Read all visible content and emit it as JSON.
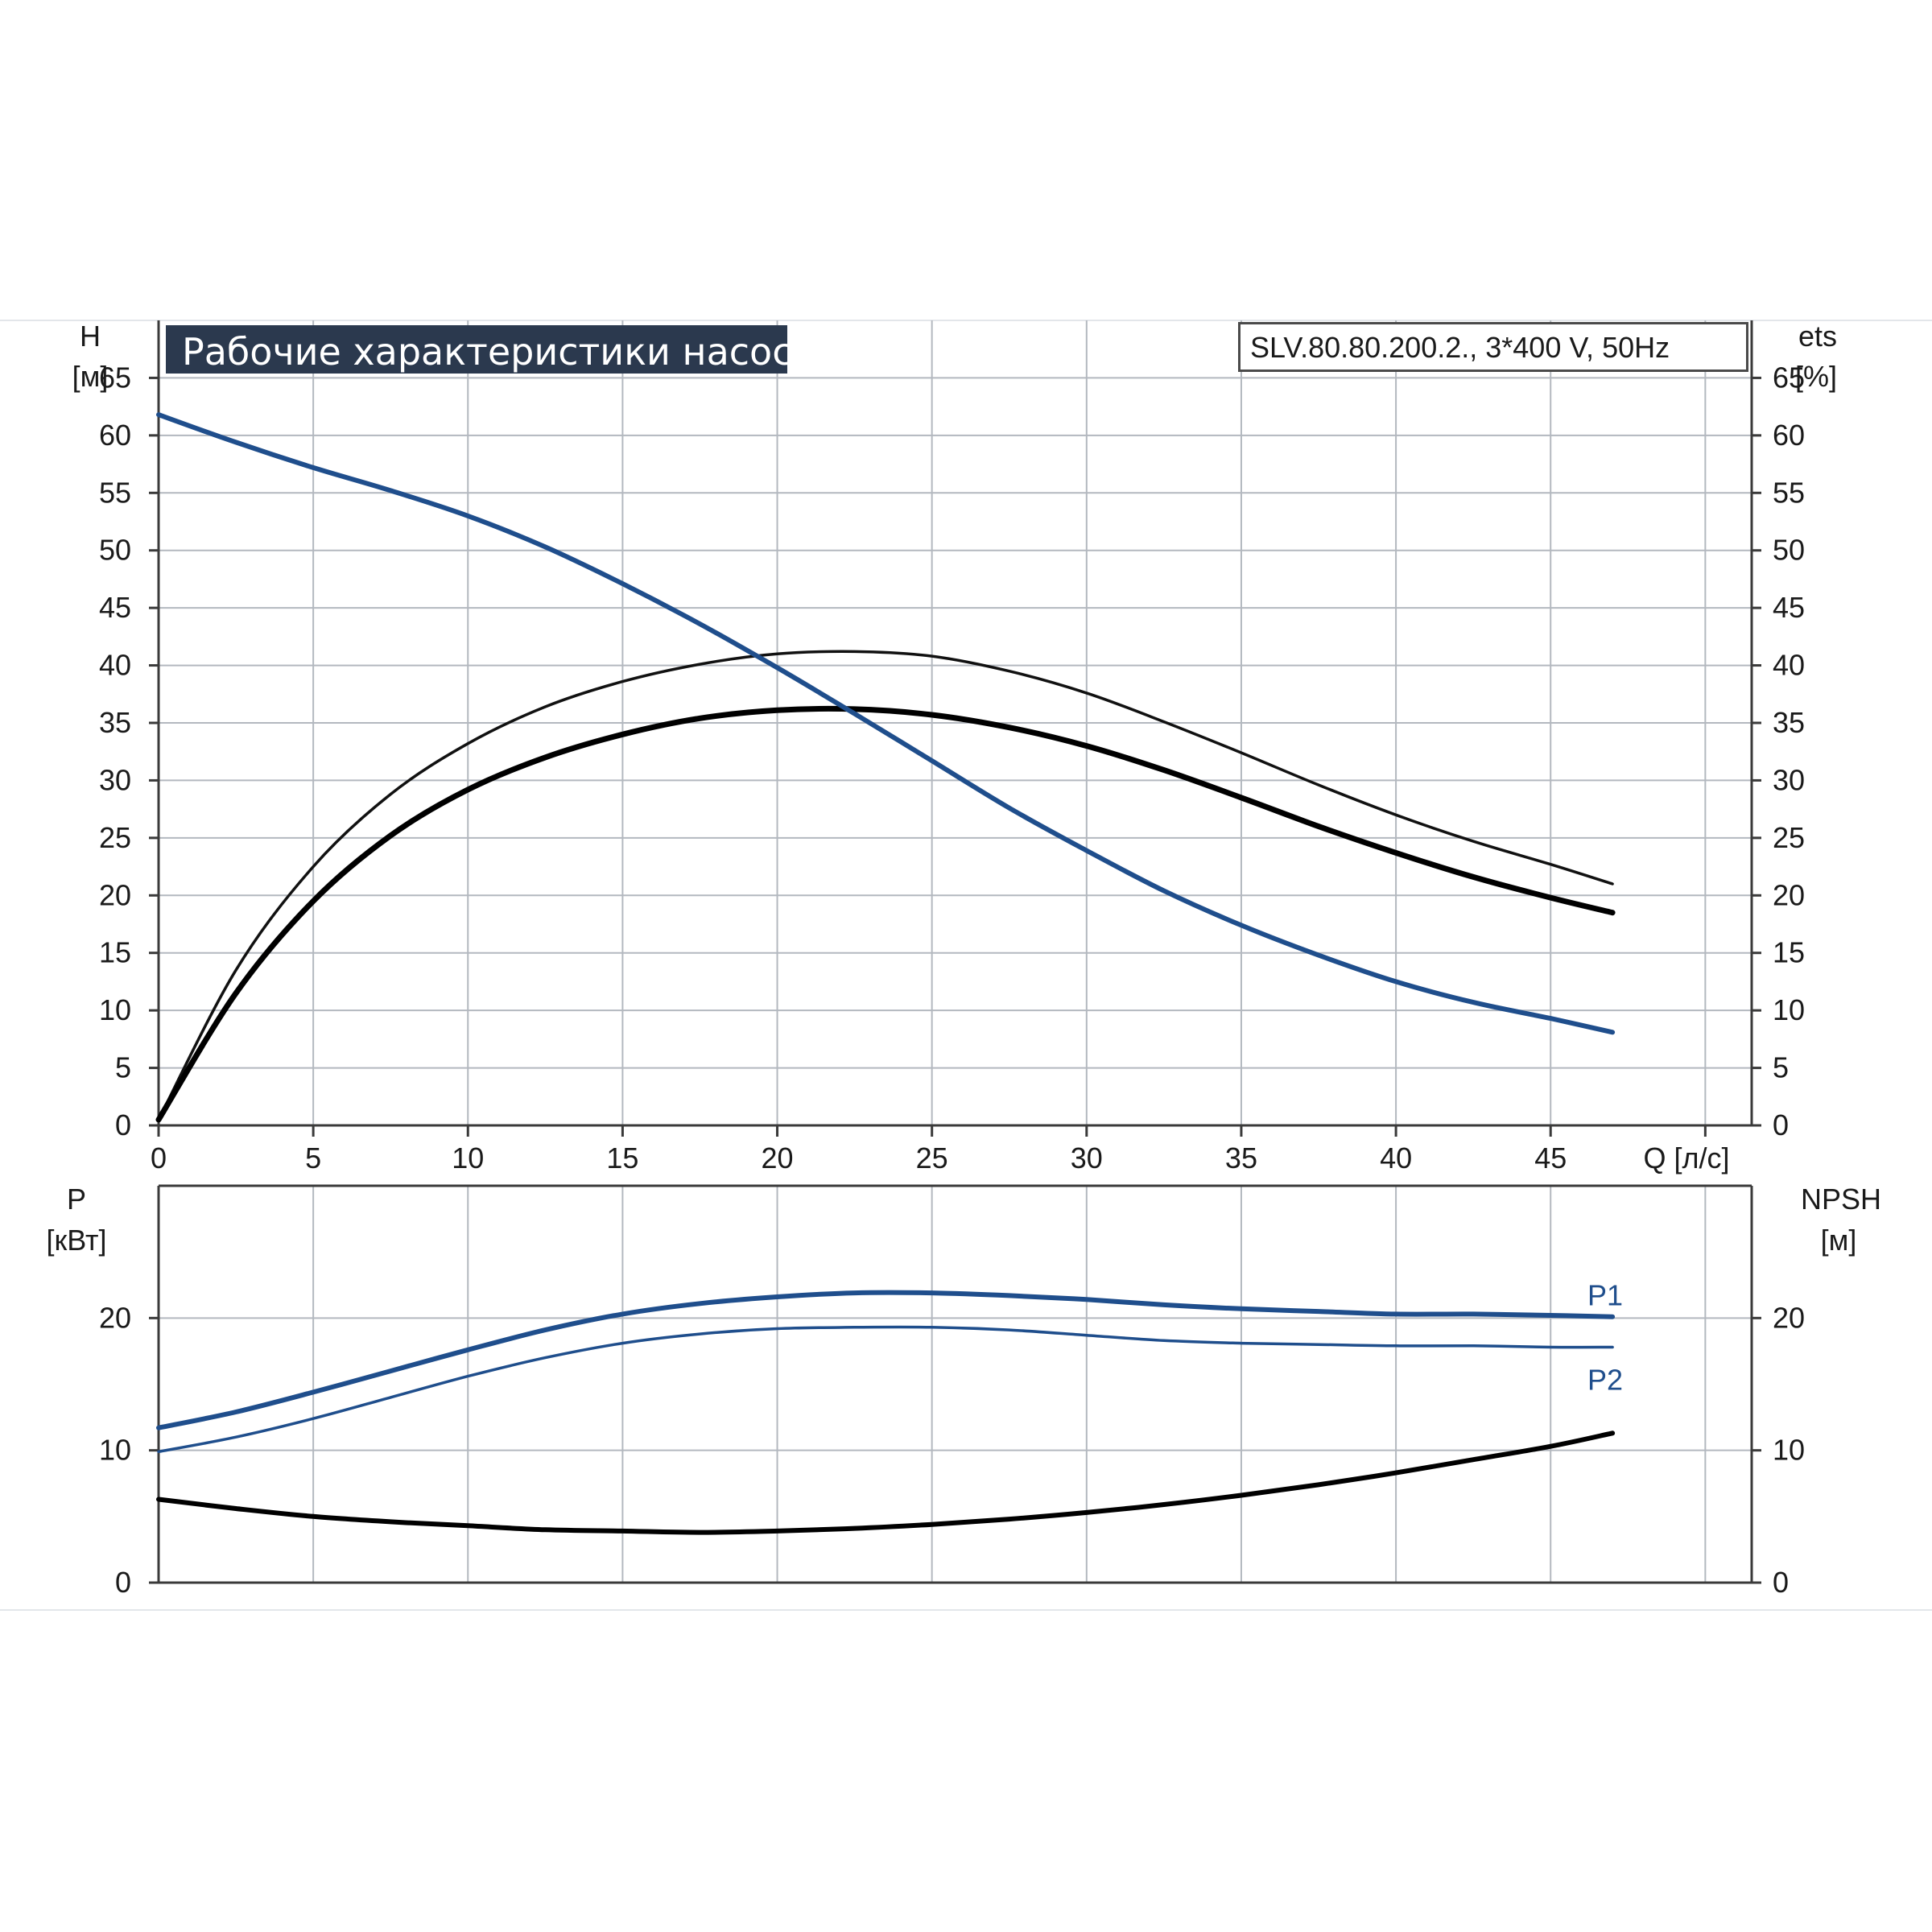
{
  "chart_data": [
    {
      "type": "line",
      "title": "Рабочие характеристики насоса",
      "model": "SLV.80.80.200.2., 3*400 V, 50Hz",
      "xlabel": "Q [л/с]",
      "x_ticks": [
        "0",
        "5",
        "10",
        "15",
        "20",
        "25",
        "30",
        "35",
        "40",
        "45"
      ],
      "xlim": [
        0,
        51.5
      ],
      "ylabel_left": [
        "H",
        "[м]"
      ],
      "ylabel_right": [
        "ets",
        "[%]"
      ],
      "y_ticks": [
        "0",
        "5",
        "10",
        "15",
        "20",
        "25",
        "30",
        "35",
        "40",
        "45",
        "50",
        "55",
        "60",
        "65"
      ],
      "ylim": [
        0,
        70
      ],
      "grid": true,
      "series": [
        {
          "color": "#1f4e8c",
          "x": [
            0,
            2.5,
            5,
            7.5,
            10,
            12.5,
            15,
            17.5,
            20,
            22.5,
            25,
            27.5,
            30,
            32.5,
            35,
            37.5,
            40,
            42.5,
            45,
            47
          ],
          "y": [
            61.8,
            59.4,
            57.2,
            55.2,
            53.0,
            50.3,
            47.1,
            43.6,
            39.8,
            35.8,
            31.7,
            27.6,
            23.9,
            20.4,
            17.4,
            14.8,
            12.5,
            10.7,
            9.3,
            8.1
          ]
        },
        {
          "color": "#111111",
          "x": [
            0,
            2.5,
            5,
            7.5,
            10,
            12.5,
            15,
            17.5,
            20,
            22.5,
            25,
            27.5,
            30,
            32.5,
            35,
            37.5,
            40,
            42.5,
            45,
            47
          ],
          "y": [
            0.5,
            13.5,
            22.5,
            28.8,
            33.2,
            36.4,
            38.6,
            40.1,
            41.0,
            41.2,
            40.8,
            39.5,
            37.6,
            35.1,
            32.4,
            29.6,
            27.0,
            24.7,
            22.7,
            21.0
          ]
        },
        {
          "color": "#000000",
          "x": [
            0,
            2.5,
            5,
            7.5,
            10,
            12.5,
            15,
            17.5,
            20,
            22.5,
            25,
            27.5,
            30,
            32.5,
            35,
            37.5,
            40,
            42.5,
            45,
            47
          ],
          "y": [
            0.5,
            11.5,
            19.5,
            25.2,
            29.2,
            32.0,
            34.0,
            35.4,
            36.1,
            36.2,
            35.7,
            34.6,
            33.0,
            30.9,
            28.5,
            26.0,
            23.7,
            21.6,
            19.8,
            18.5
          ]
        }
      ]
    },
    {
      "type": "line",
      "xlim": [
        0,
        51.5
      ],
      "ylabel_left": [
        "P",
        "[кВт]"
      ],
      "ylabel_right": [
        "NPSH",
        "[м]"
      ],
      "y_ticks": [
        "0",
        "10",
        "20"
      ],
      "ylim": [
        0,
        30
      ],
      "grid": true,
      "series": [
        {
          "name": "P1",
          "color": "#1f4e8c",
          "x": [
            0,
            2.5,
            5,
            7.5,
            10,
            12.5,
            15,
            17.5,
            20,
            22.5,
            25,
            27.5,
            30,
            32.5,
            35,
            37.5,
            40,
            42.5,
            45,
            47
          ],
          "y": [
            11.7,
            12.9,
            14.4,
            16.0,
            17.6,
            19.1,
            20.3,
            21.1,
            21.6,
            21.9,
            21.9,
            21.7,
            21.4,
            21.0,
            20.7,
            20.5,
            20.3,
            20.3,
            20.2,
            20.1
          ]
        },
        {
          "name": "P2",
          "color": "#1f4e8c",
          "x": [
            0,
            2.5,
            5,
            7.5,
            10,
            12.5,
            15,
            17.5,
            20,
            22.5,
            25,
            27.5,
            30,
            32.5,
            35,
            37.5,
            40,
            42.5,
            45,
            47
          ],
          "y": [
            9.9,
            11.0,
            12.4,
            14.0,
            15.6,
            17.0,
            18.1,
            18.8,
            19.2,
            19.3,
            19.3,
            19.1,
            18.7,
            18.3,
            18.1,
            18.0,
            17.9,
            17.9,
            17.8,
            17.8
          ]
        },
        {
          "color": "#000000",
          "x": [
            0,
            2.5,
            5,
            7.5,
            10,
            12.5,
            15,
            17.5,
            20,
            22.5,
            25,
            27.5,
            30,
            32.5,
            35,
            37.5,
            40,
            42.5,
            45,
            47
          ],
          "y": [
            6.3,
            5.6,
            5.0,
            4.6,
            4.3,
            4.0,
            3.9,
            3.8,
            3.9,
            4.1,
            4.4,
            4.8,
            5.3,
            5.9,
            6.6,
            7.4,
            8.3,
            9.3,
            10.3,
            11.3
          ]
        }
      ]
    }
  ]
}
